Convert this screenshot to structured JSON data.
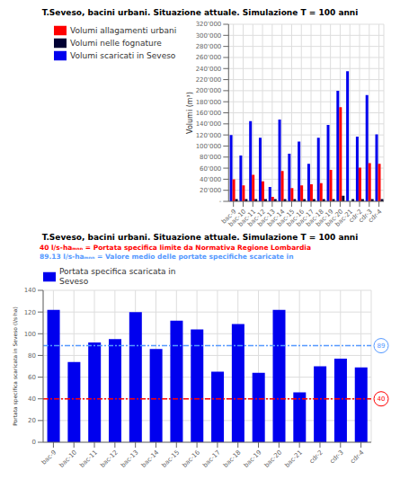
{
  "chart_data": [
    {
      "type": "bar",
      "title": "T.Seveso, bacini urbani. Situazione attuale. Simulazione T = 100 anni",
      "categories": [
        "bac-9",
        "bac-10",
        "bac-11",
        "bac-12",
        "bac-13",
        "bac-14",
        "bac-15",
        "bac-16",
        "bac-17",
        "bac-18",
        "bac-19",
        "bac-20",
        "bac-21",
        "cdr-2",
        "cdr-3",
        "cdr-4"
      ],
      "series": [
        {
          "name": "Volumi scaricati in Seveso",
          "color": "#0000EE",
          "values": [
            120000,
            83000,
            145000,
            115000,
            26000,
            148000,
            86000,
            108000,
            68000,
            115000,
            138000,
            200000,
            235000,
            117000,
            192000,
            121000
          ]
        },
        {
          "name": "Volumi allagamenti urbani",
          "color": "#FF0000",
          "values": [
            40000,
            29000,
            48000,
            36000,
            8000,
            55000,
            24000,
            29000,
            31000,
            33000,
            57000,
            170000,
            0,
            61000,
            69000,
            68000
          ]
        },
        {
          "name": "Volumi nelle fognature",
          "color": "#000033",
          "values": [
            4000,
            4000,
            4000,
            4000,
            4000,
            4000,
            4000,
            4000,
            4000,
            4000,
            4000,
            10000,
            4000,
            4000,
            4000,
            4000
          ]
        }
      ],
      "ylabel": "Volumi (m³)",
      "ylim": [
        0,
        320000
      ],
      "yticks": [
        {
          "value": 0,
          "label": "-"
        },
        {
          "value": 20000,
          "label": "20'000"
        },
        {
          "value": 40000,
          "label": "40'000"
        },
        {
          "value": 60000,
          "label": "60'000"
        },
        {
          "value": 80000,
          "label": "80'000"
        },
        {
          "value": 100000,
          "label": "100'000"
        },
        {
          "value": 120000,
          "label": "120'000"
        },
        {
          "value": 140000,
          "label": "140'000"
        },
        {
          "value": 160000,
          "label": "160'000"
        },
        {
          "value": 180000,
          "label": "180'000"
        },
        {
          "value": 200000,
          "label": "200'000"
        },
        {
          "value": 220000,
          "label": "220'000"
        },
        {
          "value": 240000,
          "label": "240'000"
        },
        {
          "value": 260000,
          "label": "260'000"
        },
        {
          "value": 280000,
          "label": "280'000"
        },
        {
          "value": 300000,
          "label": "300'000"
        },
        {
          "value": 320000,
          "label": "320'000"
        }
      ],
      "grid": true,
      "legend": "upper left"
    },
    {
      "type": "bar",
      "title": "T.Seveso, bacini urbani. Situazione attuale. Simulazione T = 100 anni",
      "categories": [
        "bac-9",
        "bac-10",
        "bac-11",
        "bac-12",
        "bac-13",
        "bac-14",
        "bac-15",
        "bac-16",
        "bac-17",
        "bac-18",
        "bac-19",
        "bac-20",
        "bac-21",
        "cdr-2",
        "cdr-3",
        "cdr-4"
      ],
      "series": [
        {
          "name": "Portata specifica scaricata in\nSeveso",
          "color": "#0000EE",
          "values": [
            122,
            74,
            92,
            95,
            120,
            86,
            112,
            104,
            65,
            109,
            64,
            122,
            46,
            70,
            77,
            69
          ]
        }
      ],
      "ylabel": "Portata specifica scaricata in Seveso (l/s·ha)",
      "ylim": [
        0,
        140
      ],
      "yticks": [
        0,
        20,
        40,
        60,
        80,
        100,
        120,
        140
      ],
      "grid": true,
      "legend": "upper left",
      "reference_lines": [
        {
          "value": 40,
          "color": "red",
          "label": "40"
        },
        {
          "value": 89,
          "color": "#5599FF",
          "label": "89"
        }
      ],
      "annotations": [
        {
          "text": "40 l/s-haₘₙₙ = Portata specifica limite da Normativa Regione Lombardia",
          "color": "red"
        },
        {
          "text": "89.13 l/s-haₘₙₙ = Valore medio delle portate specifiche scaricate in",
          "color": "#5599FF"
        }
      ]
    }
  ]
}
